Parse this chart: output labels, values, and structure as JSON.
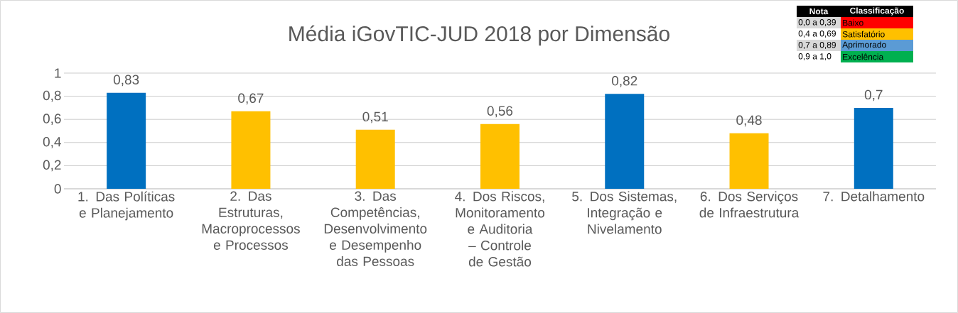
{
  "chart_data": {
    "type": "bar",
    "title": "Média iGovTIC-JUD 2018 por Dimensão",
    "categories": [
      "1. Das Políticas e Planejamento",
      "2. Das Estruturas, Macroprocessos e Processos",
      "3. Das Competências, Desenvolvimento e Desempenho das Pessoas",
      "4. Dos Riscos, Monitoramento e Auditoria – Controle de Gestão",
      "5. Dos Sistemas, Integração e Nivelamento",
      "6. Dos Serviços de Infraestrutura",
      "7. Detalhamento"
    ],
    "values": [
      0.83,
      0.67,
      0.51,
      0.56,
      0.82,
      0.48,
      0.7
    ],
    "colors": [
      "#0070c0",
      "#ffc000",
      "#ffc000",
      "#ffc000",
      "#0070c0",
      "#ffc000",
      "#0070c0"
    ],
    "value_labels": [
      "0,83",
      "0,67",
      "0,51",
      "0,56",
      "0,82",
      "0,48",
      "0,7"
    ],
    "ylim": [
      0,
      1
    ],
    "yticks": [
      {
        "value": 0,
        "label": "0"
      },
      {
        "value": 0.2,
        "label": "0,2"
      },
      {
        "value": 0.4,
        "label": "0,4"
      },
      {
        "value": 0.6,
        "label": "0,6"
      },
      {
        "value": 0.8,
        "label": "0,8"
      },
      {
        "value": 1,
        "label": "1"
      }
    ],
    "grid": "y",
    "annotations": [
      "Nota",
      "Classificação",
      "0,0 a 0,39",
      "Baixo",
      "0,4 a 0,69",
      "Satisfatório",
      "0,7 a 0,89",
      "Aprimorado",
      "0,9 a 1,0",
      "Excelência"
    ]
  }
}
